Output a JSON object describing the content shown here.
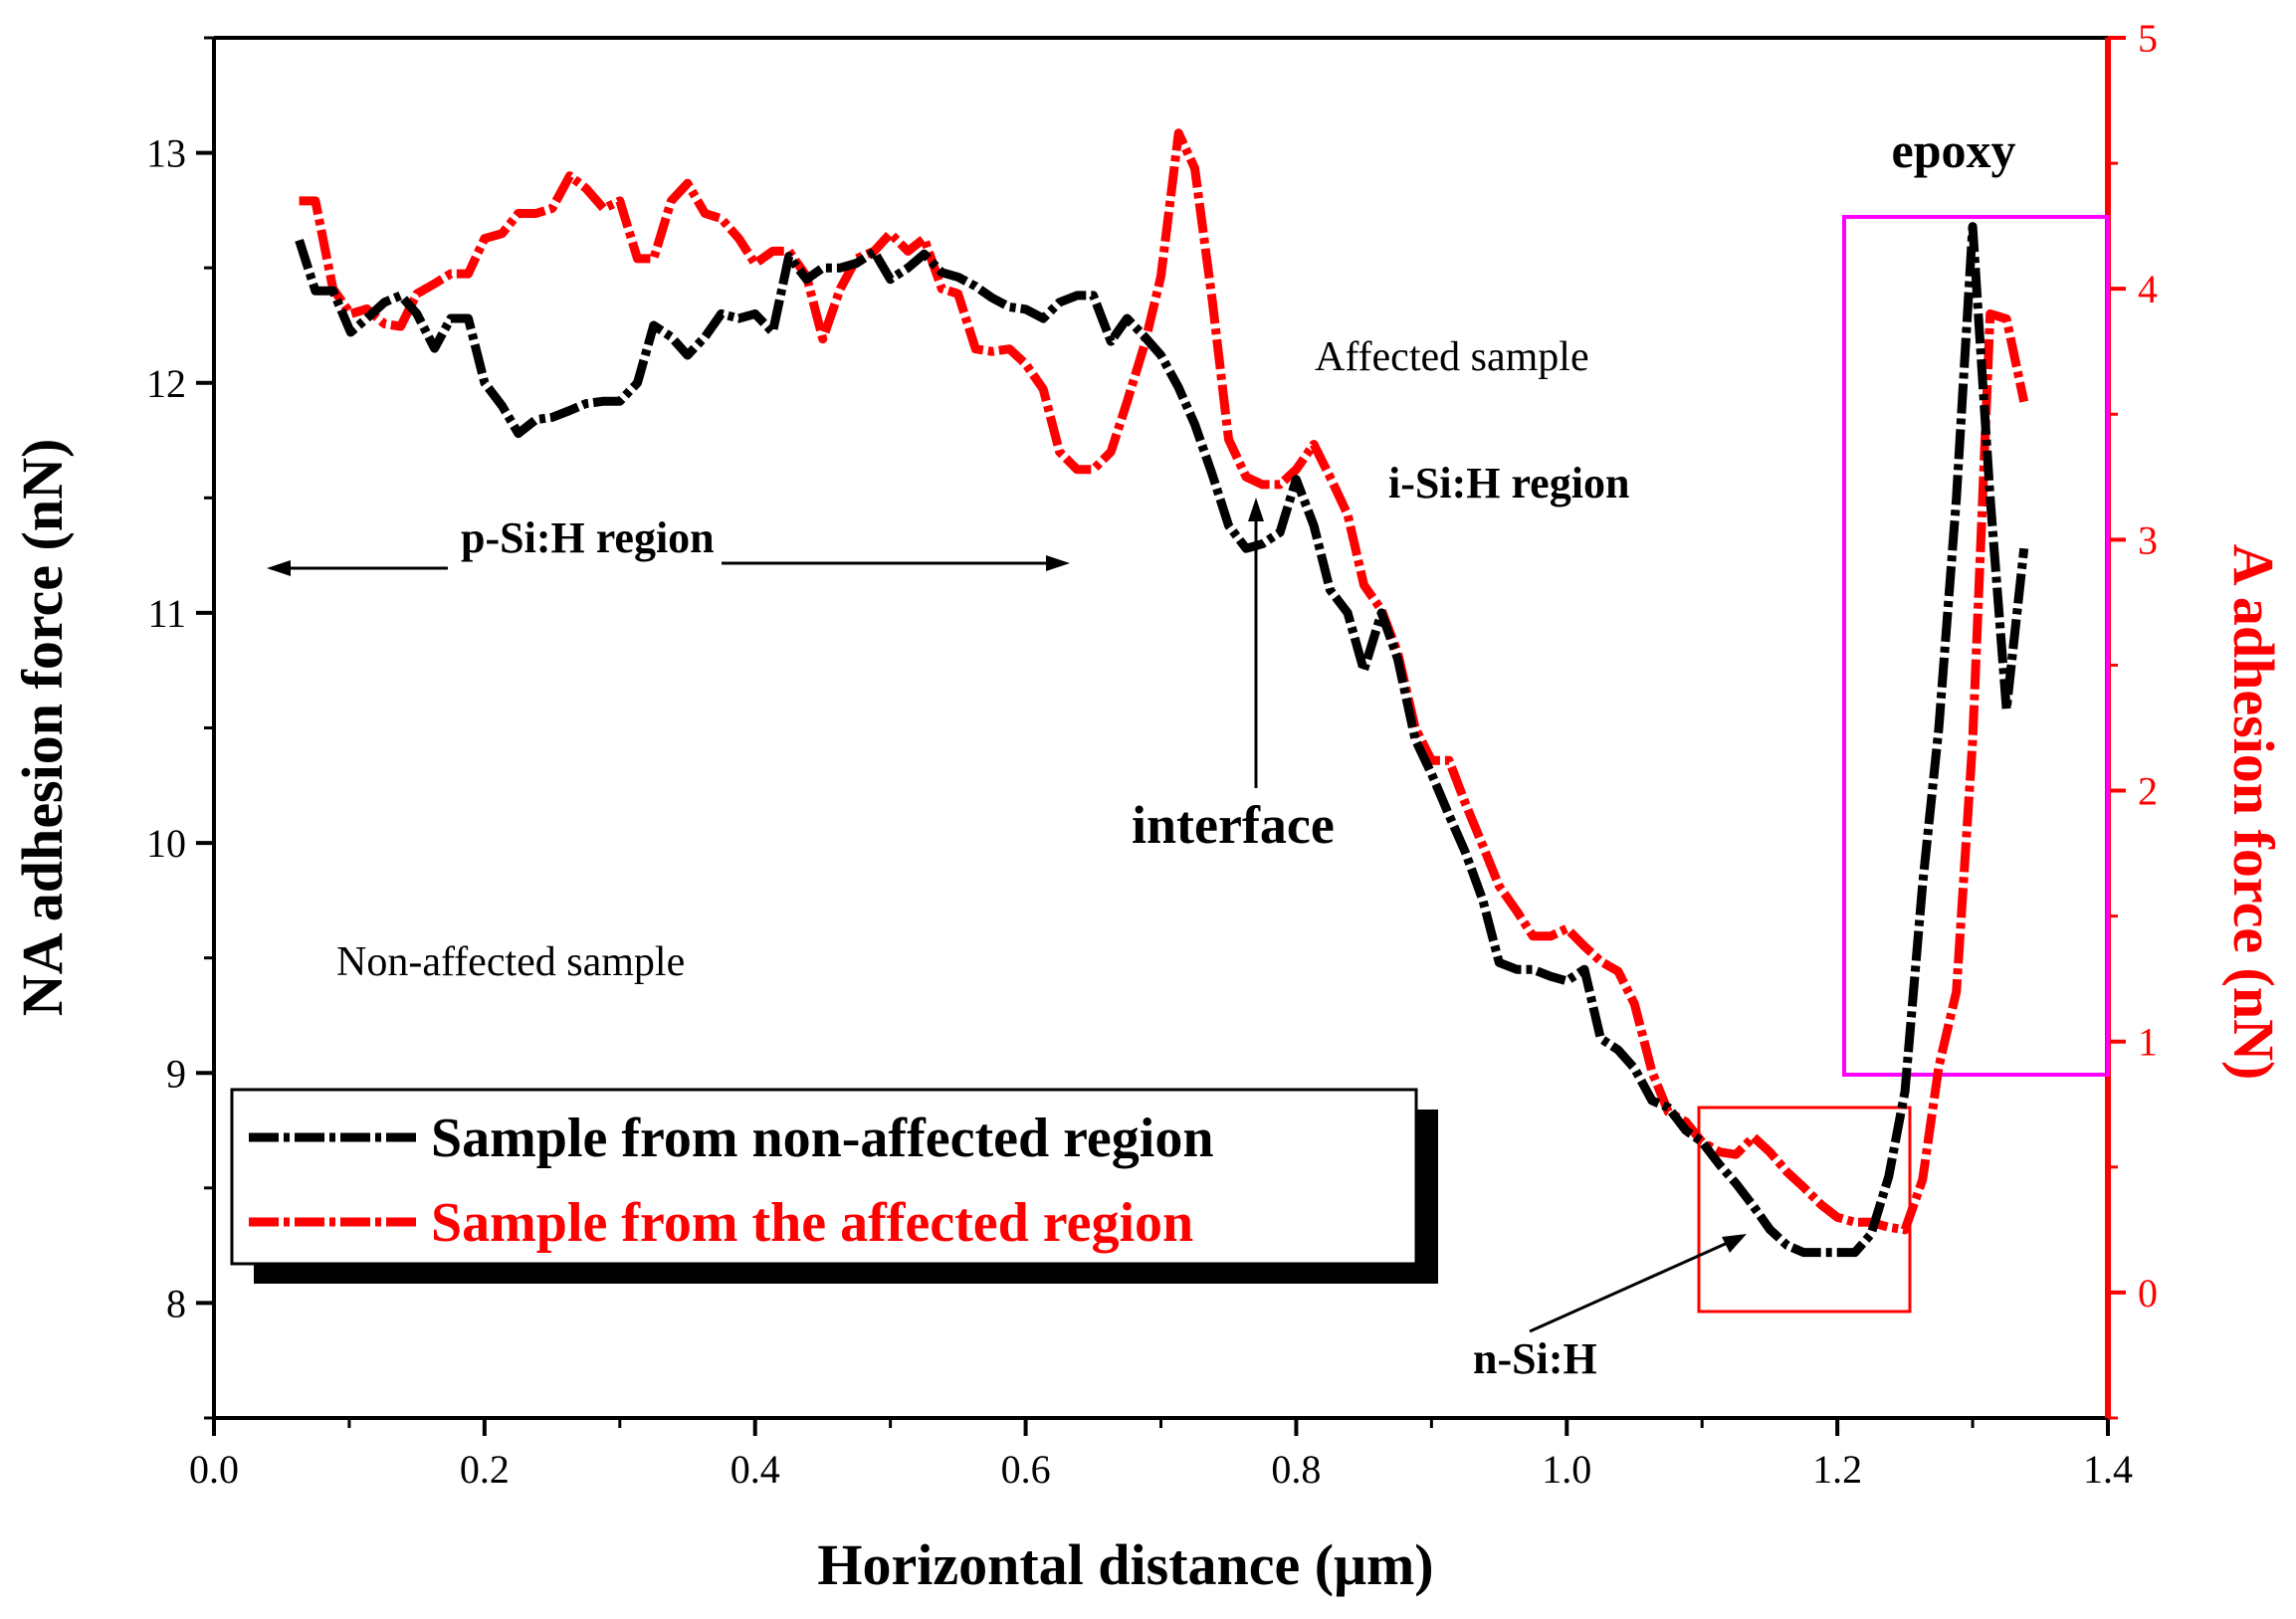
{
  "chart_data": {
    "type": "line",
    "xlabel": "Horizontal distance (μm)",
    "ylabel_left": "NA adhesion force (nN)",
    "ylabel_right": "A adhesion force (nN)",
    "xlim": [
      0.0,
      1.4
    ],
    "ylim_left": [
      7.5,
      13.5
    ],
    "ylim_right": [
      -0.5,
      5
    ],
    "x_ticks": [
      "0.0",
      "0.2",
      "0.4",
      "0.6",
      "0.8",
      "1.0",
      "1.2",
      "1.4"
    ],
    "y_left_ticks": [
      "8",
      "9",
      "10",
      "11",
      "12",
      "13"
    ],
    "y_right_ticks": [
      "0",
      "1",
      "2",
      "3",
      "4",
      "5"
    ],
    "colors": {
      "non_affected": "#000000",
      "affected": "#ff0000",
      "epoxy_box": "#ff00ff",
      "nsih_box": "#ff0000"
    },
    "series": [
      {
        "name": "Sample from non-affected region",
        "axis": "left",
        "color": "#000000",
        "points": [
          [
            0.063,
            12.62
          ],
          [
            0.075,
            12.4
          ],
          [
            0.088,
            12.4
          ],
          [
            0.101,
            12.22
          ],
          [
            0.113,
            12.28
          ],
          [
            0.126,
            12.35
          ],
          [
            0.138,
            12.38
          ],
          [
            0.15,
            12.3
          ],
          [
            0.163,
            12.15
          ],
          [
            0.175,
            12.28
          ],
          [
            0.188,
            12.28
          ],
          [
            0.2,
            12.0
          ],
          [
            0.213,
            11.9
          ],
          [
            0.225,
            11.78
          ],
          [
            0.238,
            11.84
          ],
          [
            0.25,
            11.85
          ],
          [
            0.263,
            11.88
          ],
          [
            0.275,
            11.91
          ],
          [
            0.288,
            11.92
          ],
          [
            0.3,
            11.92
          ],
          [
            0.313,
            12.0
          ],
          [
            0.325,
            12.25
          ],
          [
            0.338,
            12.2
          ],
          [
            0.35,
            12.12
          ],
          [
            0.363,
            12.2
          ],
          [
            0.375,
            12.3
          ],
          [
            0.388,
            12.28
          ],
          [
            0.4,
            12.3
          ],
          [
            0.413,
            12.22
          ],
          [
            0.425,
            12.55
          ],
          [
            0.438,
            12.45
          ],
          [
            0.45,
            12.5
          ],
          [
            0.463,
            12.5
          ],
          [
            0.475,
            12.52
          ],
          [
            0.488,
            12.57
          ],
          [
            0.5,
            12.45
          ],
          [
            0.513,
            12.5
          ],
          [
            0.525,
            12.56
          ],
          [
            0.538,
            12.48
          ],
          [
            0.55,
            12.46
          ],
          [
            0.563,
            12.42
          ],
          [
            0.575,
            12.37
          ],
          [
            0.588,
            12.33
          ],
          [
            0.6,
            12.32
          ],
          [
            0.613,
            12.28
          ],
          [
            0.625,
            12.35
          ],
          [
            0.638,
            12.38
          ],
          [
            0.65,
            12.38
          ],
          [
            0.663,
            12.18
          ],
          [
            0.675,
            12.28
          ],
          [
            0.688,
            12.2
          ],
          [
            0.7,
            12.12
          ],
          [
            0.713,
            11.98
          ],
          [
            0.725,
            11.82
          ],
          [
            0.738,
            11.6
          ],
          [
            0.75,
            11.38
          ],
          [
            0.763,
            11.28
          ],
          [
            0.775,
            11.3
          ],
          [
            0.788,
            11.35
          ],
          [
            0.8,
            11.58
          ],
          [
            0.813,
            11.38
          ],
          [
            0.825,
            11.1
          ],
          [
            0.838,
            11.0
          ],
          [
            0.85,
            10.75
          ],
          [
            0.863,
            11.0
          ],
          [
            0.875,
            10.8
          ],
          [
            0.888,
            10.45
          ],
          [
            0.9,
            10.3
          ],
          [
            0.913,
            10.12
          ],
          [
            0.925,
            9.96
          ],
          [
            0.938,
            9.75
          ],
          [
            0.95,
            9.48
          ],
          [
            0.963,
            9.45
          ],
          [
            0.975,
            9.45
          ],
          [
            0.988,
            9.42
          ],
          [
            1.0,
            9.4
          ],
          [
            1.013,
            9.45
          ],
          [
            1.025,
            9.15
          ],
          [
            1.038,
            9.1
          ],
          [
            1.05,
            9.02
          ],
          [
            1.063,
            8.88
          ],
          [
            1.075,
            8.85
          ],
          [
            1.088,
            8.75
          ],
          [
            1.1,
            8.7
          ],
          [
            1.113,
            8.6
          ],
          [
            1.125,
            8.52
          ],
          [
            1.138,
            8.42
          ],
          [
            1.15,
            8.32
          ],
          [
            1.163,
            8.25
          ],
          [
            1.175,
            8.22
          ],
          [
            1.188,
            8.22
          ],
          [
            1.2,
            8.22
          ],
          [
            1.213,
            8.22
          ],
          [
            1.225,
            8.3
          ],
          [
            1.238,
            8.55
          ],
          [
            1.25,
            8.92
          ],
          [
            1.263,
            9.82
          ],
          [
            1.275,
            10.5
          ],
          [
            1.288,
            11.5
          ],
          [
            1.3,
            12.68
          ],
          [
            1.313,
            11.5
          ],
          [
            1.325,
            10.58
          ],
          [
            1.338,
            11.28
          ]
        ]
      },
      {
        "name": "Sample from the affected region",
        "axis": "right",
        "color": "#ff0000",
        "points": [
          [
            0.063,
            4.35
          ],
          [
            0.075,
            4.35
          ],
          [
            0.088,
            4.0
          ],
          [
            0.101,
            3.9
          ],
          [
            0.113,
            3.92
          ],
          [
            0.126,
            3.86
          ],
          [
            0.138,
            3.85
          ],
          [
            0.15,
            3.98
          ],
          [
            0.163,
            4.02
          ],
          [
            0.175,
            4.06
          ],
          [
            0.188,
            4.06
          ],
          [
            0.2,
            4.2
          ],
          [
            0.213,
            4.22
          ],
          [
            0.225,
            4.3
          ],
          [
            0.238,
            4.3
          ],
          [
            0.25,
            4.32
          ],
          [
            0.263,
            4.45
          ],
          [
            0.275,
            4.4
          ],
          [
            0.288,
            4.32
          ],
          [
            0.3,
            4.35
          ],
          [
            0.313,
            4.12
          ],
          [
            0.325,
            4.12
          ],
          [
            0.338,
            4.35
          ],
          [
            0.35,
            4.42
          ],
          [
            0.363,
            4.3
          ],
          [
            0.375,
            4.28
          ],
          [
            0.388,
            4.2
          ],
          [
            0.4,
            4.1
          ],
          [
            0.413,
            4.15
          ],
          [
            0.425,
            4.15
          ],
          [
            0.438,
            4.05
          ],
          [
            0.45,
            3.8
          ],
          [
            0.463,
            4.0
          ],
          [
            0.475,
            4.12
          ],
          [
            0.488,
            4.15
          ],
          [
            0.5,
            4.22
          ],
          [
            0.513,
            4.15
          ],
          [
            0.525,
            4.2
          ],
          [
            0.538,
            4.0
          ],
          [
            0.55,
            3.98
          ],
          [
            0.563,
            3.76
          ],
          [
            0.575,
            3.75
          ],
          [
            0.588,
            3.76
          ],
          [
            0.6,
            3.7
          ],
          [
            0.613,
            3.6
          ],
          [
            0.625,
            3.35
          ],
          [
            0.638,
            3.28
          ],
          [
            0.65,
            3.28
          ],
          [
            0.663,
            3.35
          ],
          [
            0.675,
            3.55
          ],
          [
            0.688,
            3.78
          ],
          [
            0.7,
            4.05
          ],
          [
            0.713,
            4.62
          ],
          [
            0.725,
            4.48
          ],
          [
            0.738,
            3.95
          ],
          [
            0.75,
            3.4
          ],
          [
            0.763,
            3.25
          ],
          [
            0.775,
            3.22
          ],
          [
            0.788,
            3.22
          ],
          [
            0.8,
            3.28
          ],
          [
            0.813,
            3.38
          ],
          [
            0.825,
            3.25
          ],
          [
            0.838,
            3.1
          ],
          [
            0.85,
            2.82
          ],
          [
            0.863,
            2.72
          ],
          [
            0.875,
            2.55
          ],
          [
            0.888,
            2.25
          ],
          [
            0.9,
            2.12
          ],
          [
            0.913,
            2.12
          ],
          [
            0.925,
            1.95
          ],
          [
            0.938,
            1.78
          ],
          [
            0.95,
            1.62
          ],
          [
            0.963,
            1.52
          ],
          [
            0.975,
            1.42
          ],
          [
            0.988,
            1.42
          ],
          [
            1.0,
            1.45
          ],
          [
            1.013,
            1.38
          ],
          [
            1.025,
            1.32
          ],
          [
            1.038,
            1.28
          ],
          [
            1.05,
            1.15
          ],
          [
            1.063,
            0.88
          ],
          [
            1.075,
            0.72
          ],
          [
            1.088,
            0.68
          ],
          [
            1.1,
            0.6
          ],
          [
            1.113,
            0.56
          ],
          [
            1.125,
            0.55
          ],
          [
            1.138,
            0.62
          ],
          [
            1.15,
            0.56
          ],
          [
            1.163,
            0.48
          ],
          [
            1.175,
            0.42
          ],
          [
            1.188,
            0.35
          ],
          [
            1.2,
            0.3
          ],
          [
            1.213,
            0.28
          ],
          [
            1.225,
            0.28
          ],
          [
            1.238,
            0.26
          ],
          [
            1.25,
            0.25
          ],
          [
            1.263,
            0.45
          ],
          [
            1.275,
            0.9
          ],
          [
            1.288,
            1.2
          ],
          [
            1.3,
            2.2
          ],
          [
            1.313,
            3.9
          ],
          [
            1.325,
            3.88
          ],
          [
            1.338,
            3.55
          ]
        ]
      }
    ],
    "annotations": {
      "epoxy": "epoxy",
      "affected_sample": "Affected sample",
      "isih_region": "i-Si:H region",
      "psih_region": "p-Si:H region",
      "interface": "interface",
      "non_affected_sample": "Non-affected sample",
      "nsih": "n-Si:H"
    },
    "legend": {
      "placement": "bottom-left",
      "entries": [
        "Sample from non-affected region",
        "Sample from the affected region"
      ]
    }
  }
}
